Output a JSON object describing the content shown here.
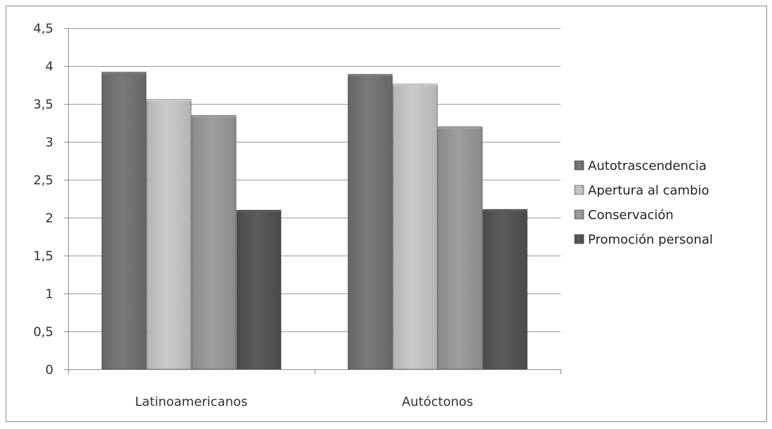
{
  "chart_data": {
    "type": "bar",
    "categories": [
      "Latinoamericanos",
      "Autóctonos"
    ],
    "series": [
      {
        "name": "Autotrascendencia",
        "values": [
          3.92,
          3.89
        ],
        "color": "#666666",
        "light": "#7a7a7a"
      },
      {
        "name": "Apertura al cambio",
        "values": [
          3.56,
          3.76
        ],
        "color": "#b4b4b4",
        "light": "#cacaca"
      },
      {
        "name": "Conservación",
        "values": [
          3.35,
          3.2
        ],
        "color": "#8a8a8a",
        "light": "#9e9e9e"
      },
      {
        "name": "Promoción personal",
        "values": [
          2.1,
          2.11
        ],
        "color": "#4a4a4a",
        "light": "#5c5c5c"
      }
    ],
    "yticks": [
      "0",
      "0,5",
      "1",
      "1,5",
      "2",
      "2,5",
      "3",
      "3,5",
      "4",
      "4,5"
    ],
    "ylim": [
      0,
      4.5
    ],
    "grid": true,
    "legend_position": "right",
    "title": "",
    "xlabel": "",
    "ylabel": ""
  }
}
